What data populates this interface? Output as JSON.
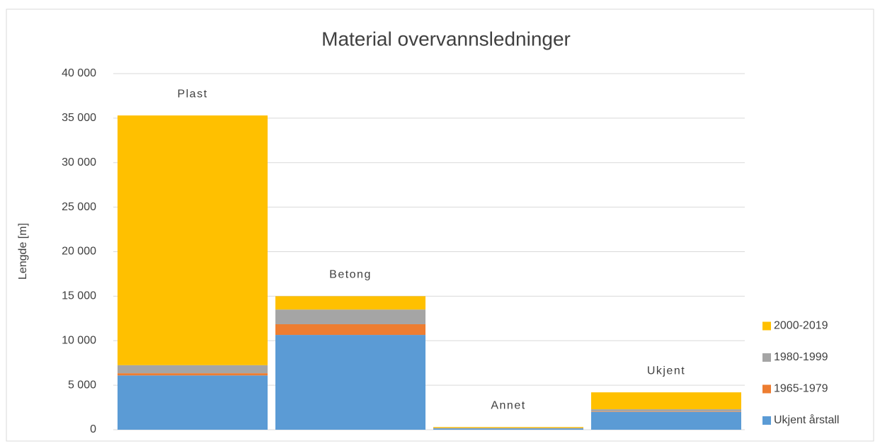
{
  "chart_data": {
    "type": "stacked_bar",
    "title": "Material overvannsledninger",
    "y_label": "Lengde [m]",
    "categories": [
      "Plast",
      "Betong",
      "Annet",
      "Ukjent"
    ],
    "series": [
      {
        "name": "Ukjent årstall",
        "color": "#5b9bd5",
        "values": [
          6100,
          10650,
          150,
          2000
        ]
      },
      {
        "name": "1965-1979",
        "color": "#ed7d31",
        "values": [
          250,
          1200,
          20,
          50
        ]
      },
      {
        "name": "1980-1999",
        "color": "#a5a5a5",
        "values": [
          900,
          1650,
          30,
          250
        ]
      },
      {
        "name": "2000-2019",
        "color": "#ffc000",
        "values": [
          28050,
          1500,
          100,
          1900
        ]
      }
    ],
    "ylim": [
      0,
      40000
    ],
    "yticks": [
      0,
      {
        "value": 5000,
        "label": "5 000"
      },
      {
        "value": 10000,
        "label": "10 000"
      },
      {
        "value": 15000,
        "label": "15 000"
      },
      {
        "value": 20000,
        "label": "20 000"
      },
      {
        "value": 25000,
        "label": "25 000"
      },
      {
        "value": 30000,
        "label": "30 000"
      },
      {
        "value": 35000,
        "label": "35 000"
      },
      {
        "value": 40000,
        "label": "40 000"
      }
    ],
    "grid": true,
    "legend": "right"
  }
}
